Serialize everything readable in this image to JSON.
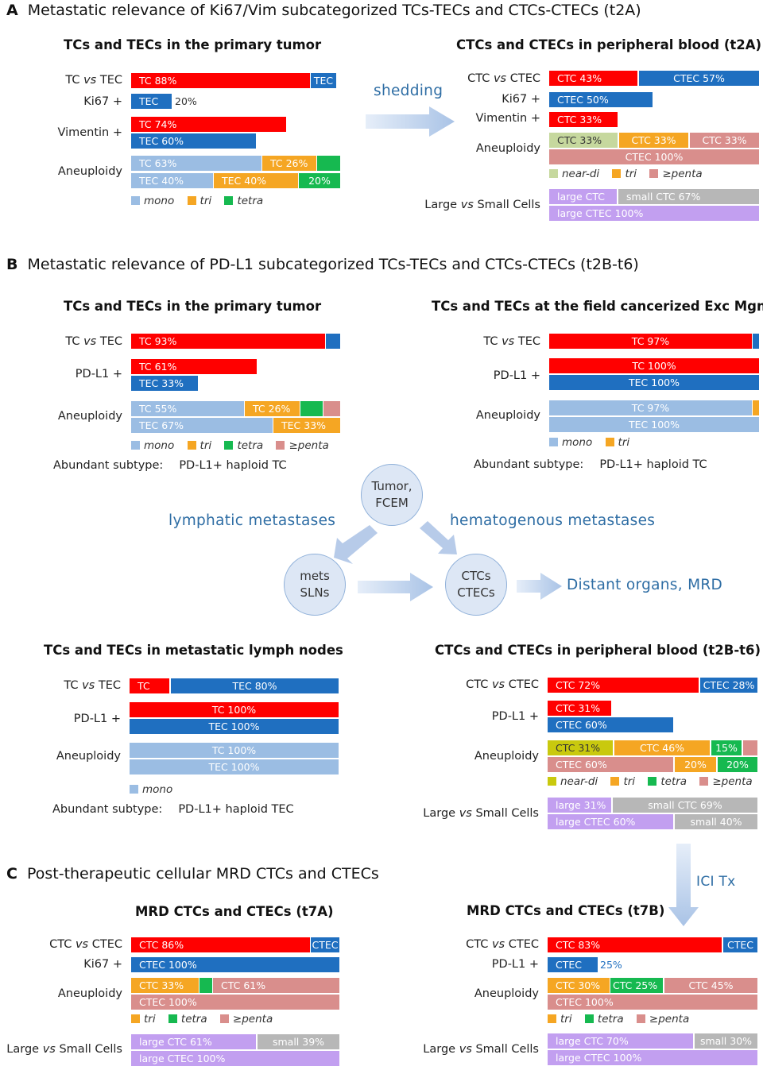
{
  "colors": {
    "tc": "#ff0000",
    "tec": "#1f6fc0",
    "mono": "#9bbde3",
    "tri": "#f5a623",
    "tetra": "#16b950",
    "penta": "#d98e8c",
    "neardi_tan": "#c6d89e",
    "neardi_yellow": "#c9c90e",
    "large": "#c29ff0",
    "small": "#b7b7b7",
    "flow": "#2e6da4"
  },
  "sections": {
    "a": {
      "letter": "A",
      "title": "Metastatic relevance of Ki67/Vim subcategorized TCs-TECs and CTCs-CTECs (t2A)"
    },
    "b": {
      "letter": "B",
      "title": "Metastatic relevance of PD-L1 subcategorized TCs-TECs and CTCs-CTECs (t2B-t6)"
    },
    "c": {
      "letter": "C",
      "title": "Post-therapeutic cellular MRD CTCs and CTECs"
    }
  },
  "panels": {
    "a_left": {
      "title": "TCs and TECs in the primary tumor",
      "row_labels": [
        "TC vs TEC",
        "Ki67 +",
        "Vimentin +",
        "Aneuploidy"
      ],
      "segments": [
        "TC 88%",
        "TEC",
        "TEC",
        "TC 74%",
        "TEC 60%",
        "TC 63%",
        "TC 26%",
        "TEC 40%",
        "TEC 40%",
        "20%"
      ],
      "outside": [
        "20%"
      ],
      "legend": [
        "mono",
        "tri",
        "tetra"
      ]
    },
    "a_right": {
      "title": "CTCs and CTECs in peripheral blood (t2A)",
      "row_labels": [
        "CTC vs CTEC",
        "Ki67 +",
        "Vimentin +",
        "Aneuploidy",
        "Large vs Small Cells"
      ],
      "segments": [
        "CTC 43%",
        "CTEC 57%",
        "CTEC 50%",
        "CTC 33%",
        "CTC 33%",
        "CTC 33%",
        "CTC 33%",
        "CTEC 100%",
        "large CTC",
        "small CTC 67%",
        "large CTEC 100%"
      ],
      "legend": [
        "near-di",
        "tri",
        "≥penta"
      ]
    },
    "b_tl": {
      "title": "TCs and TECs in the primary tumor",
      "row_labels": [
        "TC vs TEC",
        "PD-L1 +",
        "Aneuploidy"
      ],
      "segments": [
        "TC 93%",
        "TC 61%",
        "TEC 33%",
        "TC 55%",
        "TC 26%",
        "TEC 67%",
        "TEC 33%"
      ],
      "legend": [
        "mono",
        "tri",
        "tetra",
        "≥penta"
      ],
      "abundant_label": "Abundant subtype:",
      "abundant_value": "PD-L1+ haploid TC"
    },
    "b_tr": {
      "title": "TCs and TECs at the field cancerized Exc Mgn",
      "row_labels": [
        "TC vs TEC",
        "PD-L1 +",
        "Aneuploidy"
      ],
      "segments": [
        "TC 97%",
        "TC 100%",
        "TEC 100%",
        "TC 97%",
        "TEC 100%"
      ],
      "legend": [
        "mono",
        "tri"
      ],
      "abundant_label": "Abundant subtype:",
      "abundant_value": "PD-L1+ haploid TC"
    },
    "b_bl": {
      "title": "TCs and TECs in metastatic lymph nodes",
      "row_labels": [
        "TC vs TEC",
        "PD-L1 +",
        "Aneuploidy"
      ],
      "segments": [
        "TC",
        "TEC 80%",
        "TC 100%",
        "TEC 100%",
        "TC 100%",
        "TEC 100%"
      ],
      "legend": [
        "mono"
      ],
      "abundant_label": "Abundant subtype:",
      "abundant_value": "PD-L1+ haploid TEC"
    },
    "b_br": {
      "title": "CTCs and CTECs in peripheral blood (t2B-t6)",
      "row_labels": [
        "CTC vs CTEC",
        "PD-L1 +",
        "Aneuploidy",
        "Large vs Small Cells"
      ],
      "segments": [
        "CTC 72%",
        "CTEC 28%",
        "CTC 31%",
        "CTEC 60%",
        "CTC 31%",
        "CTC 46%",
        "15%",
        "CTEC 60%",
        "20%",
        "20%",
        "large 31%",
        "small CTC 69%",
        "large CTEC 60%",
        "small  40%"
      ],
      "legend": [
        "near-di",
        "tri",
        "tetra",
        "≥penta"
      ]
    },
    "c_left": {
      "title": "MRD CTCs and CTECs (t7A)",
      "row_labels": [
        "CTC vs CTEC",
        "Ki67 +",
        "Aneuploidy",
        "Large vs Small Cells"
      ],
      "segments": [
        "CTC 86%",
        "CTEC",
        "CTEC 100%",
        "CTC 33%",
        "CTC 61%",
        "CTEC 100%",
        "large CTC  61%",
        "small  39%",
        "large CTEC  100%"
      ],
      "legend": [
        "tri",
        "tetra",
        "≥penta"
      ]
    },
    "c_right": {
      "title": "MRD CTCs and CTECs (t7B)",
      "row_labels": [
        "CTC vs CTEC",
        "PD-L1 +",
        "Aneuploidy",
        "Large vs Small Cells"
      ],
      "segments": [
        "CTC 83%",
        "CTEC",
        "CTEC",
        "CTC 30%",
        "CTC 25%",
        "CTC 45%",
        "CTEC 100%",
        "large CTC 70%",
        "small 30%",
        "large CTEC 100%"
      ],
      "outside": [
        "25%"
      ],
      "legend": [
        "tri",
        "tetra",
        "≥penta"
      ]
    }
  },
  "flow": {
    "shedding": "shedding",
    "lymphatic": "lymphatic  metastases",
    "hematogenous": "hematogenous  metastases",
    "distant": "Distant  organs, MRD",
    "ici": "ICI Tx",
    "node_tumor": "Tumor, FCEM",
    "node_mets": "mets SLNs",
    "node_ctcs": "CTCs CTECs"
  }
}
